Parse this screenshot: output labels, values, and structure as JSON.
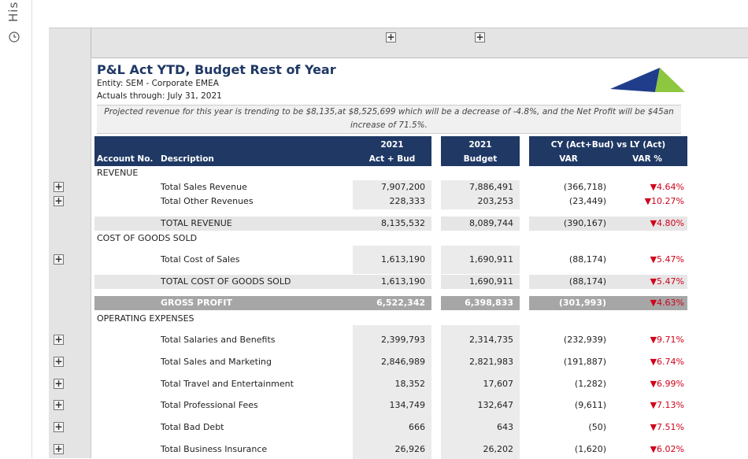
{
  "sidebar": {
    "history": "His"
  },
  "report": {
    "title": "P&L Act YTD, Budget Rest of Year",
    "entity": "Entity: SEM - Corporate EMEA",
    "actuals_through": "Actuals through:  July 31, 2021",
    "note": "Projected revenue for this year is trending to be $8,135,at $8,525,699 which will be a decrease of -4.8%, and the Net Profit will be $45an increase of 71.5%."
  },
  "table": {
    "headers": {
      "account_no": "Account No.",
      "description": "Description",
      "act_year": "2021",
      "act_label": "Act + Bud",
      "budget_year": "2021",
      "budget_label": "Budget",
      "group": "CY (Act+Bud) vs LY (Act)",
      "var": "VAR",
      "var_pct": "VAR %"
    },
    "revenue": {
      "heading": "REVENUE",
      "lines": [
        [
          "Total Sales Revenue",
          "7,907,200",
          "7,886,491",
          "(366,718)",
          "▼4.64%"
        ],
        [
          "Total Other Revenues",
          "228,333",
          "203,253",
          "(23,449)",
          "▼10.27%"
        ]
      ],
      "total": [
        "TOTAL REVENUE",
        "8,135,532",
        "8,089,744",
        "(390,167)",
        "▼4.80%"
      ]
    },
    "cogs": {
      "heading": "COST OF GOODS SOLD",
      "lines": [
        [
          "Total Cost of Sales",
          "1,613,190",
          "1,690,911",
          "(88,174)",
          "▼5.47%"
        ]
      ],
      "total": [
        "TOTAL COST OF GOODS SOLD",
        "1,613,190",
        "1,690,911",
        "(88,174)",
        "▼5.47%"
      ]
    },
    "gross_profit": [
      "GROSS PROFIT",
      "6,522,342",
      "6,398,833",
      "(301,993)",
      "▼4.63%"
    ],
    "opex": {
      "heading": "OPERATING EXPENSES",
      "lines": [
        [
          "Total Salaries and Benefits",
          "2,399,793",
          "2,314,735",
          "(232,939)",
          "▼9.71%"
        ],
        [
          "Total Sales and Marketing",
          "2,846,989",
          "2,821,983",
          "(191,887)",
          "▼6.74%"
        ],
        [
          "Total Travel and Entertainment",
          "18,352",
          "17,607",
          "(1,282)",
          "▼6.99%"
        ],
        [
          "Total Professional Fees",
          "134,749",
          "132,647",
          "(9,611)",
          "▼7.13%"
        ],
        [
          "Total Bad Debt",
          "666",
          "643",
          "(50)",
          "▼7.51%"
        ],
        [
          "Total Business Insurance",
          "26,926",
          "26,202",
          "(1,620)",
          "▼6.02%"
        ]
      ]
    }
  }
}
